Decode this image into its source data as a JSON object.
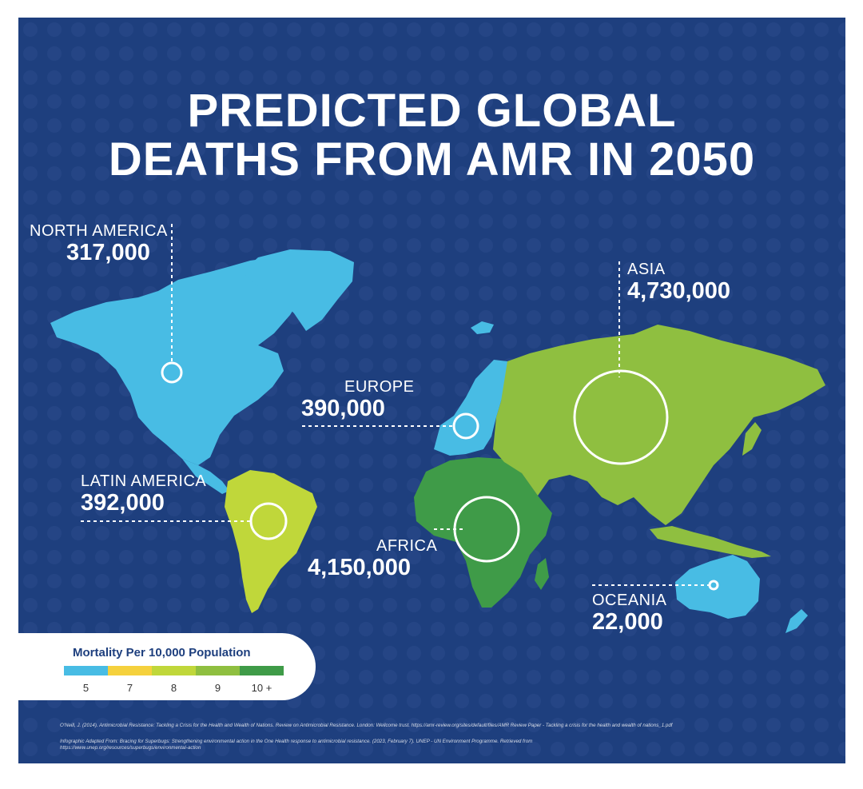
{
  "title_line1": "PREDICTED GLOBAL",
  "title_line2": "DEATHS FROM AMR IN 2050",
  "colors": {
    "background": "#1e3f7e",
    "mortality_5": "#48bce4",
    "mortality_7": "#f5d13d",
    "mortality_8": "#c0d73a",
    "mortality_9": "#8fbf40",
    "mortality_10plus": "#3f9b48"
  },
  "regions": {
    "north_america": {
      "name": "NORTH AMERICA",
      "deaths": "317,000",
      "mortality": 5
    },
    "latin_america": {
      "name": "LATIN AMERICA",
      "deaths": "392,000",
      "mortality": 8
    },
    "europe": {
      "name": "EUROPE",
      "deaths": "390,000",
      "mortality": 5
    },
    "africa": {
      "name": "AFRICA",
      "deaths": "4,150,000",
      "mortality": 10
    },
    "asia": {
      "name": "ASIA",
      "deaths": "4,730,000",
      "mortality": 9
    },
    "oceania": {
      "name": "OCEANIA",
      "deaths": "22,000",
      "mortality": 5
    }
  },
  "legend": {
    "title": "Mortality Per 10,000 Population",
    "items": [
      {
        "label": "5",
        "color": "#48bce4"
      },
      {
        "label": "7",
        "color": "#f5d13d"
      },
      {
        "label": "8",
        "color": "#c0d73a"
      },
      {
        "label": "9",
        "color": "#8fbf40"
      },
      {
        "label": "10 +",
        "color": "#3f9b48"
      }
    ]
  },
  "references": {
    "line1": "O'Neill, J. (2014). Antimicrobial Resistance: Tackling a Crisis for the Health and Wealth of Nations. Review on Antimicrobial Resistance. London: Wellcome trust. https://amr-review.org/sites/default/files/AMR Review Paper - Tackling a crisis for the health and wealth of nations_1.pdf",
    "line2": "Infographic Adapted From: Bracing for Superbugs: Strengthening environmental action in the One Health response to antimicrobial resistance. (2023, February 7). UNEP - UN Environment Programme. Retrieved from",
    "line3": "https://www.unep.org/resources/superbugs/environmental-action"
  }
}
